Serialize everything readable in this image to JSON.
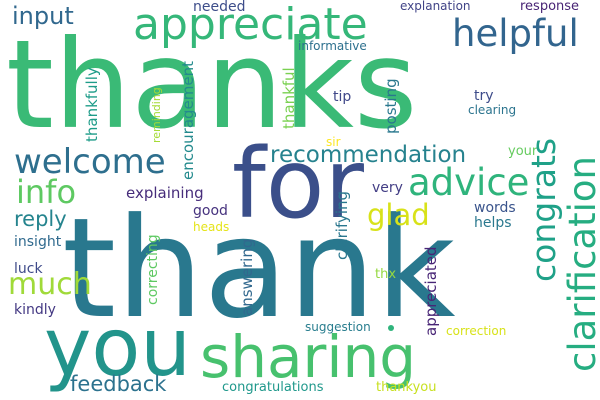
{
  "words": [
    {
      "text": "thanks",
      "color": "#3aba76"
    },
    {
      "text": "thank",
      "color": "#29788e"
    },
    {
      "text": "for",
      "color": "#3b4f8a"
    },
    {
      "text": "you",
      "color": "#22948b"
    },
    {
      "text": "sharing",
      "color": "#47c16e"
    },
    {
      "text": "appreciate",
      "color": "#35b779"
    },
    {
      "text": "helpful",
      "color": "#32658e"
    },
    {
      "text": "welcome",
      "color": "#2e6f8e"
    },
    {
      "text": "advice",
      "color": "#2fb47c"
    },
    {
      "text": "info",
      "color": "#5ec962"
    },
    {
      "text": "glad",
      "color": "#d8e219"
    },
    {
      "text": "congrats",
      "color": "#1fa188"
    },
    {
      "text": "clarification",
      "color": "#26ad81"
    },
    {
      "text": "recommendation",
      "color": "#26828e"
    },
    {
      "text": "much",
      "color": "#a0da39"
    },
    {
      "text": "feedback",
      "color": "#2c728e"
    },
    {
      "text": "input",
      "color": "#31688e"
    },
    {
      "text": "reply",
      "color": "#25848e"
    },
    {
      "text": "insight",
      "color": "#306a8e"
    },
    {
      "text": "luck",
      "color": "#3e4a89"
    },
    {
      "text": "kindly",
      "color": "#443983"
    },
    {
      "text": "needed",
      "color": "#3d4d8a"
    },
    {
      "text": "explanation",
      "color": "#414487"
    },
    {
      "text": "response",
      "color": "#482475"
    },
    {
      "text": "informative",
      "color": "#2d708e"
    },
    {
      "text": "tip",
      "color": "#3f4788"
    },
    {
      "text": "try",
      "color": "#3e4c8a"
    },
    {
      "text": "clearing",
      "color": "#2b748e"
    },
    {
      "text": "your",
      "color": "#65cb5e"
    },
    {
      "text": "sir",
      "color": "#fde725"
    },
    {
      "text": "explaining",
      "color": "#472d7b"
    },
    {
      "text": "good",
      "color": "#46327e"
    },
    {
      "text": "very",
      "color": "#433e85"
    },
    {
      "text": "words",
      "color": "#3a548c"
    },
    {
      "text": "helps",
      "color": "#2a788e"
    },
    {
      "text": "heads",
      "color": "#e5e419"
    },
    {
      "text": "thx",
      "color": "#95d840"
    },
    {
      "text": "suggestion",
      "color": "#287d8e"
    },
    {
      "text": "correction",
      "color": "#d8e219"
    },
    {
      "text": "congratulations",
      "color": "#1f988b"
    },
    {
      "text": "thankyou",
      "color": "#c8e020"
    },
    {
      "text": "thankfully",
      "color": "#1e9c89"
    },
    {
      "text": "reminding",
      "color": "#a5db36"
    },
    {
      "text": "encouragement",
      "color": "#238a8d"
    },
    {
      "text": "thankful",
      "color": "#7ad151"
    },
    {
      "text": "posting",
      "color": "#2a788e"
    },
    {
      "text": "correcting",
      "color": "#5ec962"
    },
    {
      "text": "answering",
      "color": "#31688e"
    },
    {
      "text": "clarifying",
      "color": "#2a778e"
    },
    {
      "text": "appreciated",
      "color": "#482576"
    }
  ],
  "dot_color": "#2fb47c"
}
